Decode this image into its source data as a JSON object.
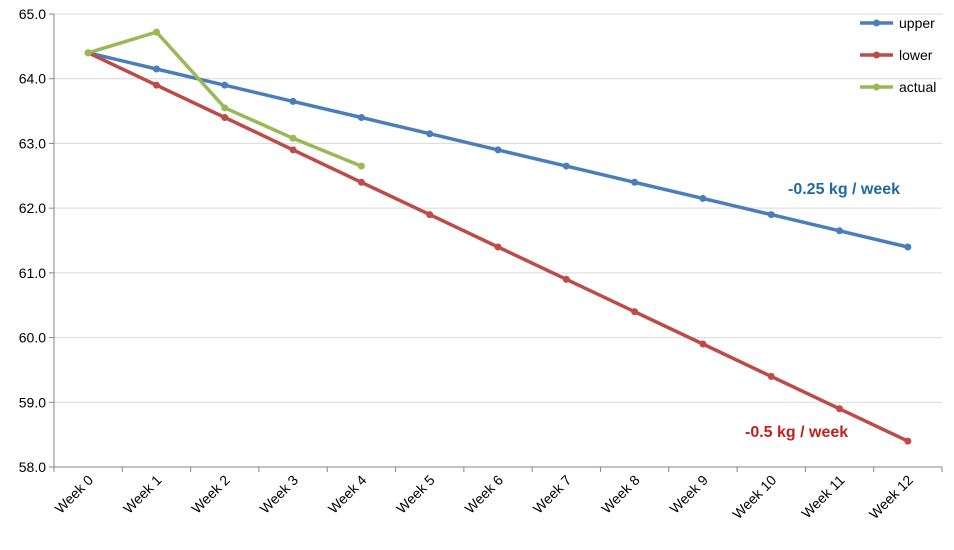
{
  "chart_data": {
    "type": "line",
    "categories": [
      "Week 0",
      "Week 1",
      "Week 2",
      "Week 3",
      "Week 4",
      "Week 5",
      "Week 6",
      "Week 7",
      "Week 8",
      "Week 9",
      "Week 10",
      "Week 11",
      "Week 12"
    ],
    "series": [
      {
        "name": "upper",
        "color": "#4a7ebb",
        "values": [
          64.4,
          64.15,
          63.9,
          63.65,
          63.4,
          63.15,
          62.9,
          62.65,
          62.4,
          62.15,
          61.9,
          61.65,
          61.4
        ]
      },
      {
        "name": "lower",
        "color": "#be4b48",
        "values": [
          64.4,
          63.9,
          63.4,
          62.9,
          62.4,
          61.9,
          61.4,
          60.9,
          60.4,
          59.9,
          59.4,
          58.9,
          58.4
        ]
      },
      {
        "name": "actual",
        "color": "#98b954",
        "values": [
          64.4,
          64.72,
          63.55,
          63.08,
          62.65,
          null,
          null,
          null,
          null,
          null,
          null,
          null,
          null
        ]
      }
    ],
    "ylim": [
      58.0,
      65.0
    ],
    "yticks": [
      "58.0",
      "59.0",
      "60.0",
      "61.0",
      "62.0",
      "63.0",
      "64.0",
      "65.0"
    ],
    "grid": true,
    "legend_position": "top-right",
    "annotations": [
      {
        "text": "-0.25 kg / week",
        "color": "#1f6aa5"
      },
      {
        "text": "-0.5 kg / week",
        "color": "#c0211b"
      }
    ],
    "title": "",
    "xlabel": "",
    "ylabel": ""
  }
}
